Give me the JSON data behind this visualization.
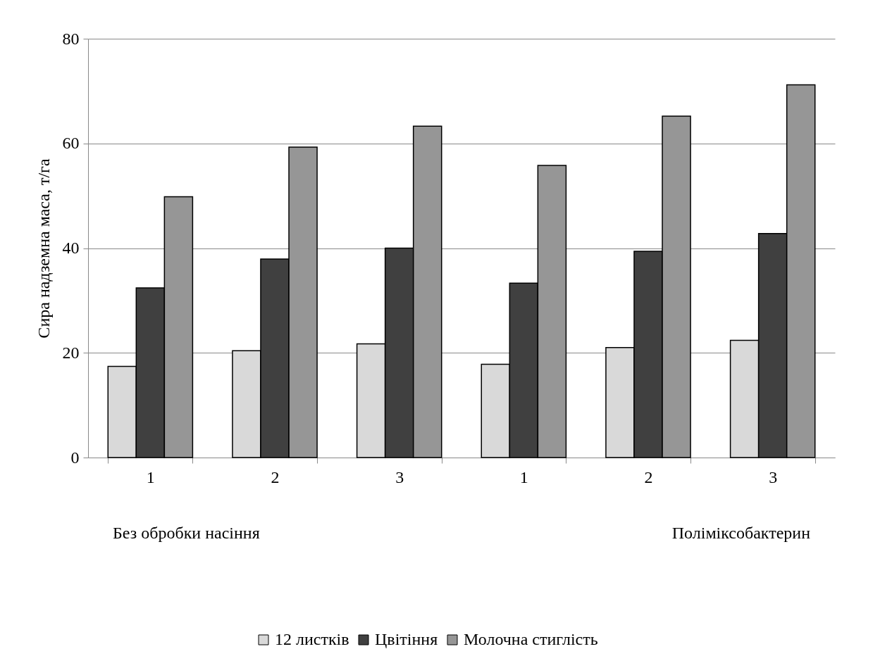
{
  "chart_data": {
    "type": "bar",
    "ylabel": "Сира надземна маса, т/га",
    "categories": [
      "1",
      "2",
      "3",
      "1",
      "2",
      "3"
    ],
    "series": [
      {
        "name": "12 листків",
        "color": "#d9d9d9",
        "values": [
          17.4,
          20.4,
          21.7,
          17.8,
          21.0,
          22.4
        ]
      },
      {
        "name": "Цвітіння",
        "color": "#404040",
        "values": [
          32.4,
          37.9,
          40.0,
          33.3,
          39.4,
          42.8
        ]
      },
      {
        "name": "Молочна стиглість",
        "color": "#969696",
        "values": [
          49.8,
          59.3,
          63.3,
          55.8,
          65.2,
          71.2
        ]
      }
    ],
    "ylim": [
      0,
      80
    ],
    "yticks": [
      0,
      20,
      40,
      60,
      80
    ],
    "grid": "y",
    "legend": "bottom",
    "annotations": [
      "Без обробки насіння",
      "Поліміксобактерин"
    ]
  }
}
